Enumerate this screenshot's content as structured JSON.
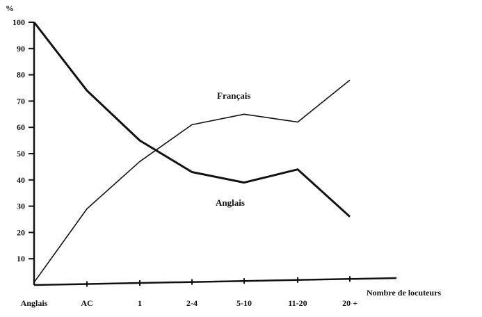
{
  "chart_data": {
    "type": "line",
    "ylabel": "%",
    "xlabel": "Nombre de locuteurs",
    "categories": [
      "Anglais",
      "AC",
      "1",
      "2-4",
      "5-10",
      "11-20",
      "20 +"
    ],
    "ylim": [
      0,
      100
    ],
    "yticks": [
      10,
      20,
      30,
      40,
      50,
      60,
      70,
      80,
      90,
      100
    ],
    "grid": false,
    "series": [
      {
        "name": "Français",
        "values": [
          1,
          29,
          47,
          61,
          65,
          62,
          78
        ],
        "color": "#111111",
        "width": "thin"
      },
      {
        "name": "Anglais",
        "values": [
          100,
          74,
          55,
          43,
          39,
          44,
          26
        ],
        "color": "#111111",
        "width": "thick"
      }
    ]
  }
}
